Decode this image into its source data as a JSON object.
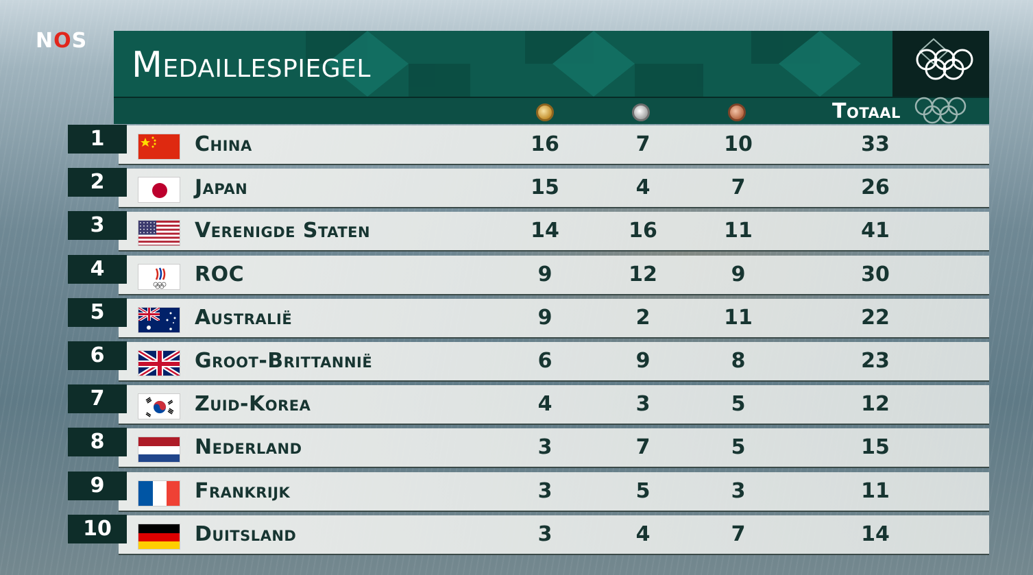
{
  "broadcaster": {
    "logo_n": "N",
    "logo_o": "O",
    "logo_s": "S"
  },
  "title": "Medaillespiegel",
  "columns": {
    "gold": "gold-medal-icon",
    "silver": "silver-medal-icon",
    "bronze": "bronze-medal-icon",
    "total": "Totaal"
  },
  "rows": [
    {
      "rank": "1",
      "country": "China",
      "flag": "china-flag-icon",
      "gold": "16",
      "silver": "7",
      "bronze": "10",
      "total": "33"
    },
    {
      "rank": "2",
      "country": "Japan",
      "flag": "japan-flag-icon",
      "gold": "15",
      "silver": "4",
      "bronze": "7",
      "total": "26"
    },
    {
      "rank": "3",
      "country": "Verenigde Staten",
      "flag": "usa-flag-icon",
      "gold": "14",
      "silver": "16",
      "bronze": "11",
      "total": "41"
    },
    {
      "rank": "4",
      "country": "ROC",
      "flag": "roc-flag-icon",
      "gold": "9",
      "silver": "12",
      "bronze": "9",
      "total": "30"
    },
    {
      "rank": "5",
      "country": "Australië",
      "flag": "australia-flag-icon",
      "gold": "9",
      "silver": "2",
      "bronze": "11",
      "total": "22"
    },
    {
      "rank": "6",
      "country": "Groot-Brittannië",
      "flag": "uk-flag-icon",
      "gold": "6",
      "silver": "9",
      "bronze": "8",
      "total": "23"
    },
    {
      "rank": "7",
      "country": "Zuid-Korea",
      "flag": "south-korea-flag-icon",
      "gold": "4",
      "silver": "3",
      "bronze": "5",
      "total": "12"
    },
    {
      "rank": "8",
      "country": "Nederland",
      "flag": "netherlands-flag-icon",
      "gold": "3",
      "silver": "7",
      "bronze": "5",
      "total": "15"
    },
    {
      "rank": "9",
      "country": "Frankrijk",
      "flag": "france-flag-icon",
      "gold": "3",
      "silver": "5",
      "bronze": "3",
      "total": "11"
    },
    {
      "rank": "10",
      "country": "Duitsland",
      "flag": "germany-flag-icon",
      "gold": "3",
      "silver": "4",
      "bronze": "7",
      "total": "14"
    }
  ],
  "colors": {
    "header_green": "#0e5a4e",
    "rank_box": "#0e2d29",
    "nos_red": "#e1261c",
    "text_dark": "#173531"
  }
}
